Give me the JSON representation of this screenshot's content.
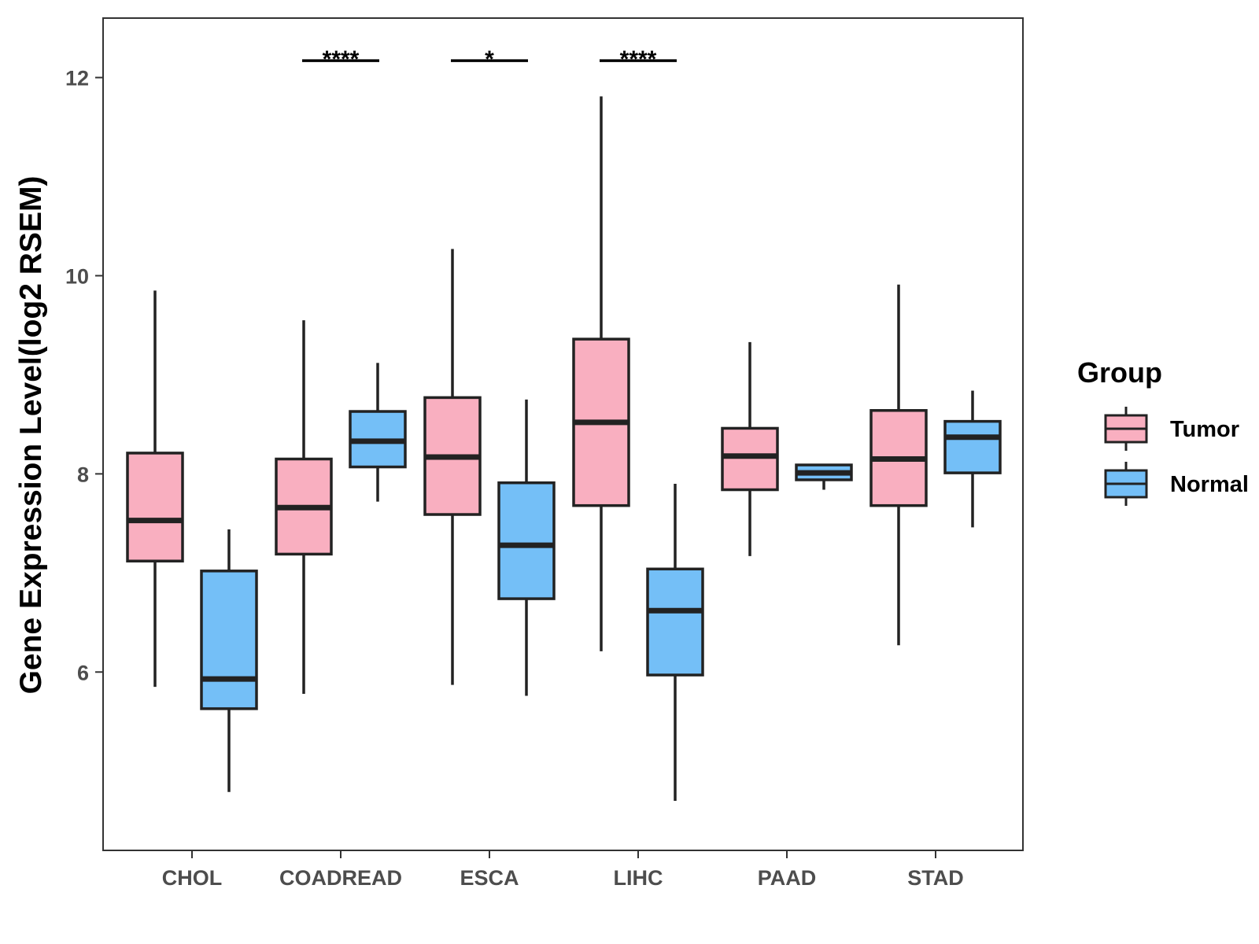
{
  "chart_data": {
    "type": "boxplot",
    "title": "",
    "xlabel": "",
    "ylabel": "Gene Expression Level(log2 RSEM)",
    "ylim": [
      4.2,
      12.6
    ],
    "yticks": [
      6,
      8,
      10,
      12
    ],
    "categories": [
      "CHOL",
      "COADREAD",
      "ESCA",
      "LIHC",
      "PAAD",
      "STAD"
    ],
    "legend": {
      "title": "Group",
      "position": "right",
      "entries": [
        {
          "name": "Tumor",
          "color": "#F9AFC0"
        },
        {
          "name": "Normal",
          "color": "#74BFF7"
        }
      ]
    },
    "series": [
      {
        "name": "Tumor",
        "color": "#F9AFC0",
        "boxes": [
          {
            "min": 5.85,
            "q1": 7.12,
            "median": 7.53,
            "q3": 8.21,
            "max": 9.85
          },
          {
            "min": 5.78,
            "q1": 7.19,
            "median": 7.66,
            "q3": 8.15,
            "max": 9.55
          },
          {
            "min": 5.87,
            "q1": 7.59,
            "median": 8.17,
            "q3": 8.77,
            "max": 10.27
          },
          {
            "min": 6.21,
            "q1": 7.68,
            "median": 8.52,
            "q3": 9.36,
            "max": 11.81
          },
          {
            "min": 7.17,
            "q1": 7.84,
            "median": 8.18,
            "q3": 8.46,
            "max": 9.33
          },
          {
            "min": 6.27,
            "q1": 7.68,
            "median": 8.15,
            "q3": 8.64,
            "max": 9.91
          }
        ]
      },
      {
        "name": "Normal",
        "color": "#74BFF7",
        "boxes": [
          {
            "min": 4.79,
            "q1": 5.63,
            "median": 5.93,
            "q3": 7.02,
            "max": 7.44
          },
          {
            "min": 7.72,
            "q1": 8.07,
            "median": 8.33,
            "q3": 8.63,
            "max": 9.12
          },
          {
            "min": 5.76,
            "q1": 6.74,
            "median": 7.28,
            "q3": 7.91,
            "max": 8.75
          },
          {
            "min": 4.7,
            "q1": 5.97,
            "median": 6.62,
            "q3": 7.04,
            "max": 7.9
          },
          {
            "min": 7.84,
            "q1": 7.94,
            "median": 8.01,
            "q3": 8.09,
            "max": 8.09
          },
          {
            "min": 7.46,
            "q1": 8.01,
            "median": 8.37,
            "q3": 8.53,
            "max": 8.84
          }
        ]
      }
    ],
    "significance": [
      {
        "category": "COADREAD",
        "label": "****",
        "y": 12.17
      },
      {
        "category": "ESCA",
        "label": "*",
        "y": 12.17
      },
      {
        "category": "LIHC",
        "label": "****",
        "y": 12.17
      }
    ],
    "grid": false
  }
}
